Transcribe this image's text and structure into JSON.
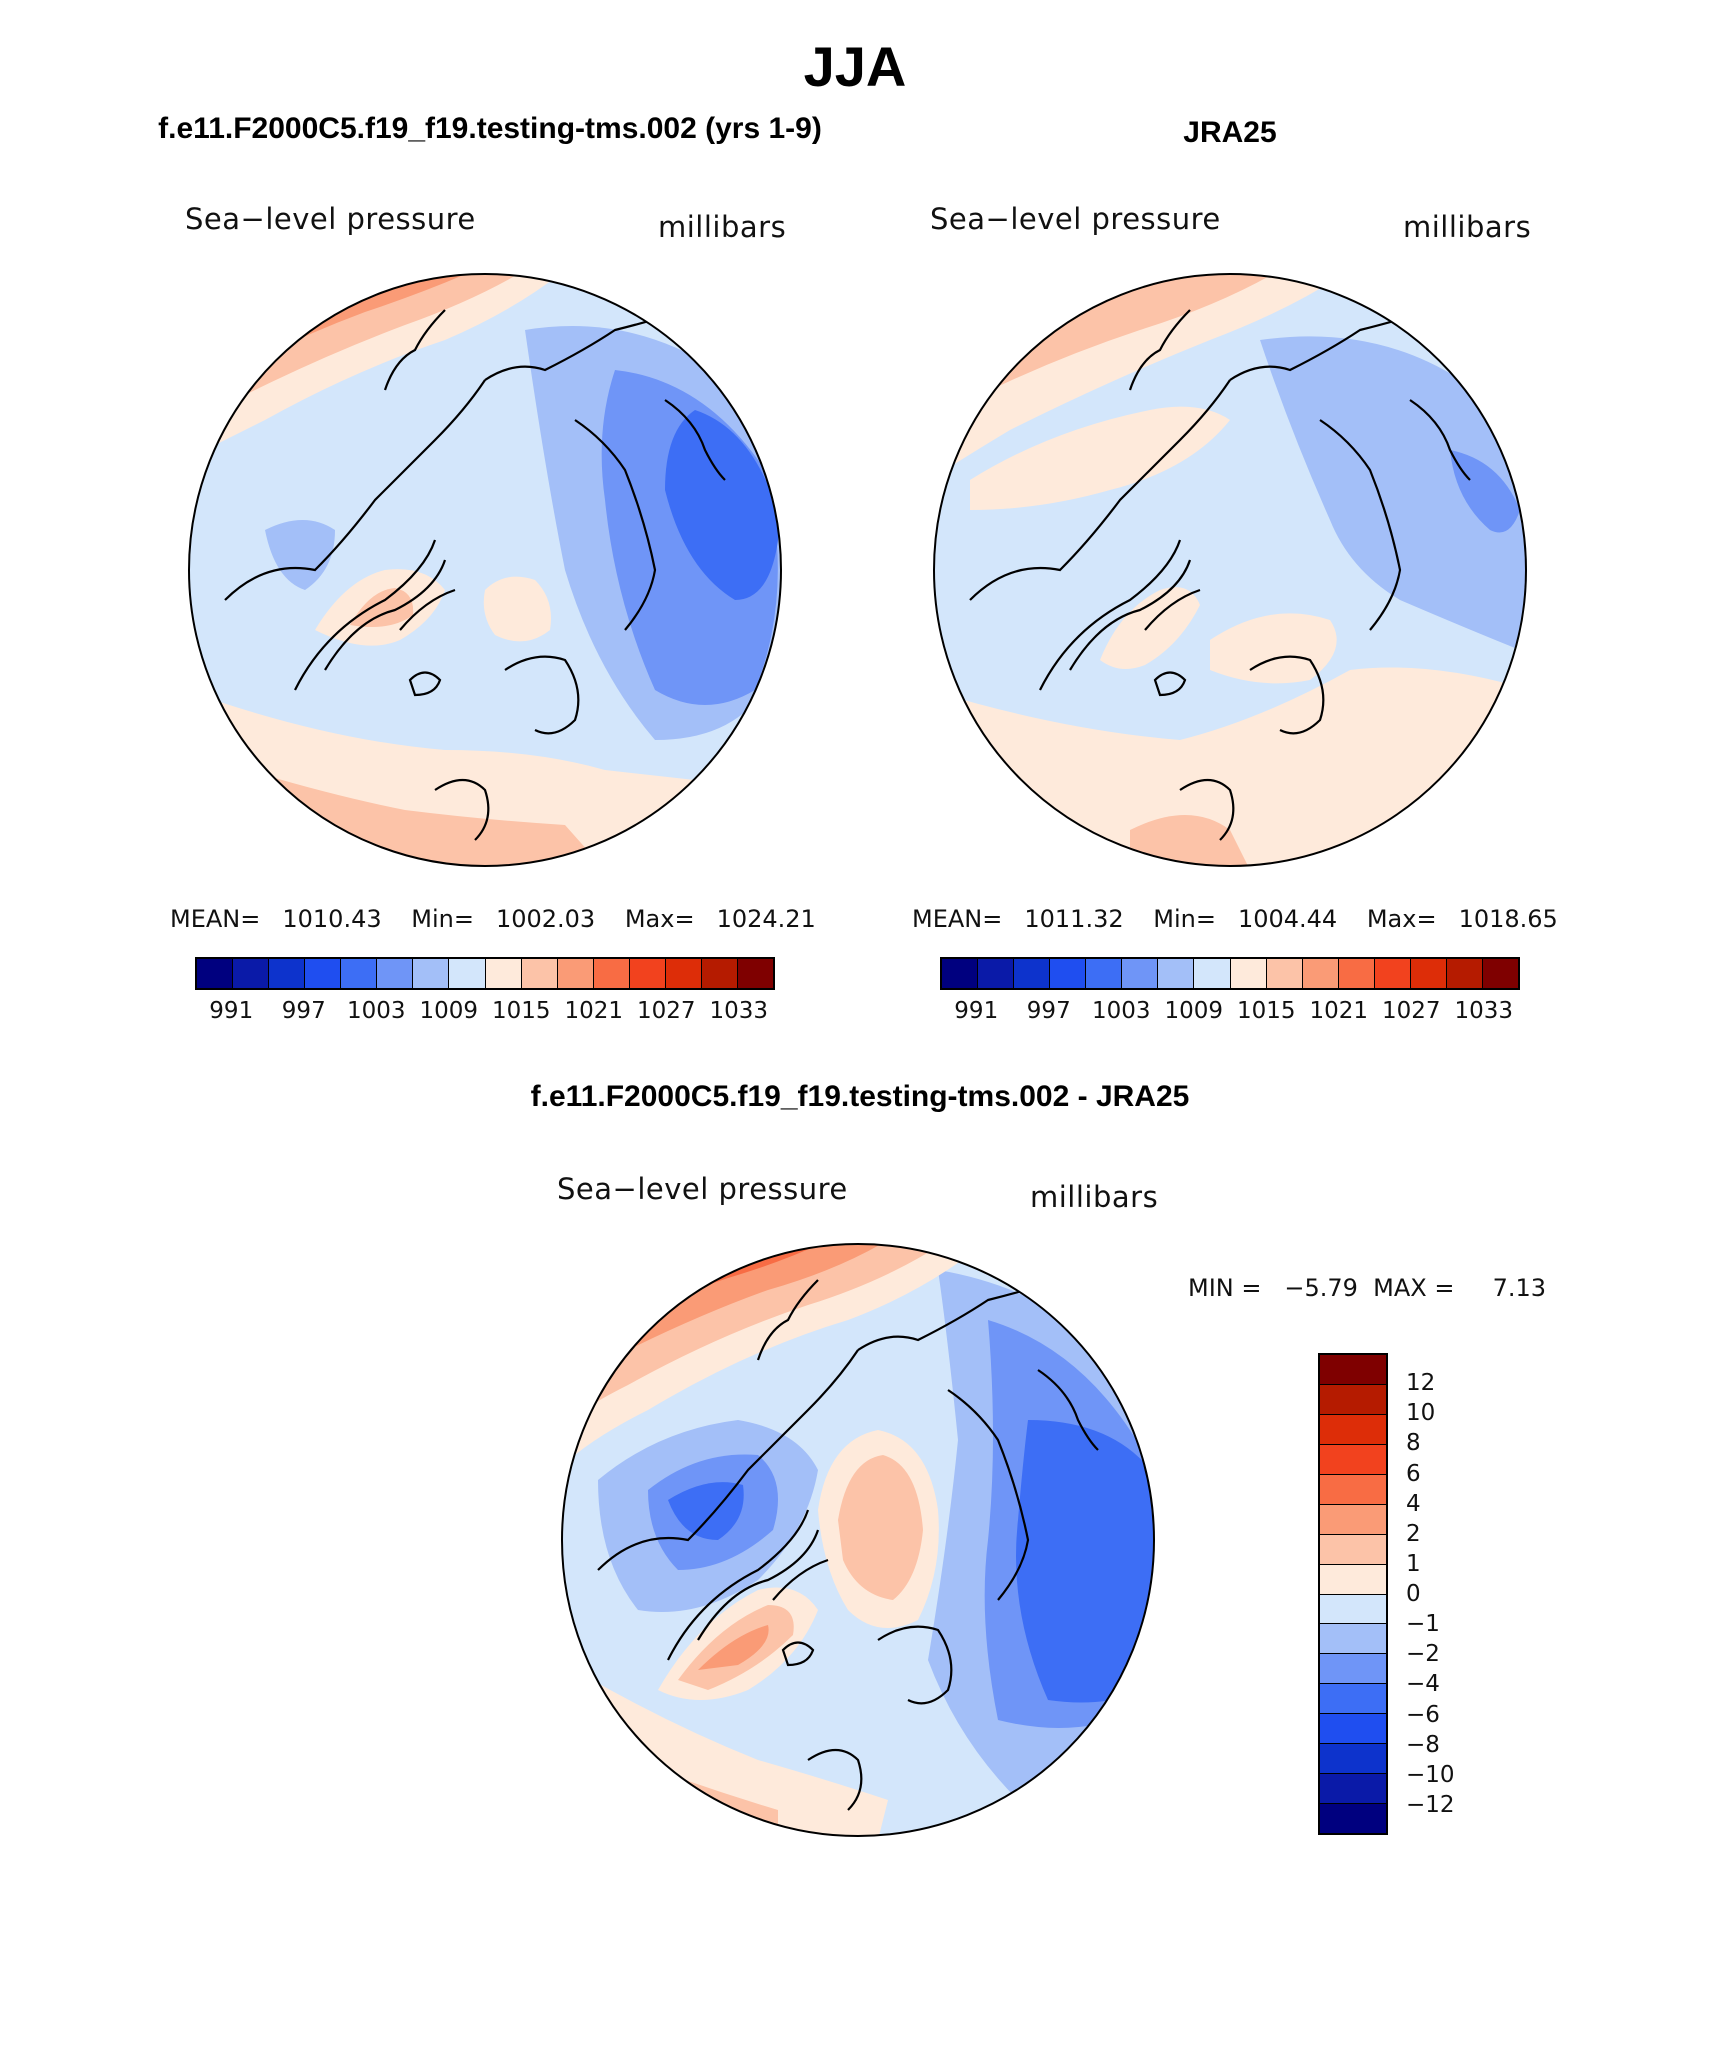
{
  "figure": {
    "title": "JJA"
  },
  "palette": {
    "abs": [
      "#00007f",
      "#0a1aa8",
      "#0d33cc",
      "#1f4ef0",
      "#3d6ef5",
      "#6f95f7",
      "#a3bff8",
      "#d3e6fb",
      "#feeadb",
      "#fcc3a8",
      "#fa9b76",
      "#f86c44",
      "#f2421e",
      "#dd2d08",
      "#b51b00",
      "#7f0000"
    ],
    "diff": [
      "#7f0000",
      "#b51b00",
      "#dd2d08",
      "#f2421e",
      "#f86c44",
      "#fa9b76",
      "#fcc3a8",
      "#feeadb",
      "#d3e6fb",
      "#a3bff8",
      "#6f95f7",
      "#3d6ef5",
      "#1f4ef0",
      "#0d33cc",
      "#0a1aa8",
      "#00007f"
    ]
  },
  "panels": [
    {
      "id": "model",
      "title": "f.e11.F2000C5.f19_f19.testing-tms.002 (yrs 1-9)",
      "variable": "Sea−level pressure",
      "units": "millibars",
      "stats": {
        "mean_label": "MEAN=",
        "mean": "1010.43",
        "min_label": "Min=",
        "min": "1002.03",
        "max_label": "Max=",
        "max": "1024.21"
      },
      "colorbar_ticks": [
        "991",
        "997",
        "1003",
        "1009",
        "1015",
        "1021",
        "1027",
        "1033"
      ]
    },
    {
      "id": "obs",
      "title": "JRA25",
      "variable": "Sea−level pressure",
      "units": "millibars",
      "stats": {
        "mean_label": "MEAN=",
        "mean": "1011.32",
        "min_label": "Min=",
        "min": "1004.44",
        "max_label": "Max=",
        "max": "1018.65"
      },
      "colorbar_ticks": [
        "991",
        "997",
        "1003",
        "1009",
        "1015",
        "1021",
        "1027",
        "1033"
      ]
    },
    {
      "id": "diff",
      "title": "f.e11.F2000C5.f19_f19.testing-tms.002 - JRA25",
      "variable": "Sea−level pressure",
      "units": "millibars",
      "stats_text": "MIN =   −5.79  MAX =     7.13",
      "colorbar_ticks": [
        "12",
        "10",
        "8",
        "6",
        "4",
        "2",
        "1",
        "0",
        "−1",
        "−2",
        "−4",
        "−6",
        "−8",
        "−10",
        "−12"
      ]
    }
  ]
}
